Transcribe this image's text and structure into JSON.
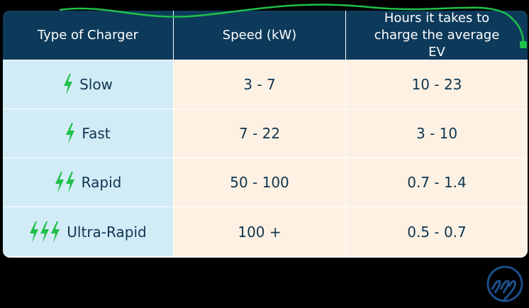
{
  "table": {
    "header": [
      "Type of Charger",
      "Speed (kW)",
      "Hours it takes to charge the average EV"
    ],
    "rows": [
      [
        "Slow",
        "3 - 7",
        "10 - 23"
      ],
      [
        "Fast",
        "7 - 22",
        "3 - 10"
      ],
      [
        "Rapid",
        "50 - 100",
        "0.7 - 1.4"
      ],
      [
        "Ultra-Rapid",
        "100 +",
        "0.5 - 0.7"
      ]
    ]
  }
}
